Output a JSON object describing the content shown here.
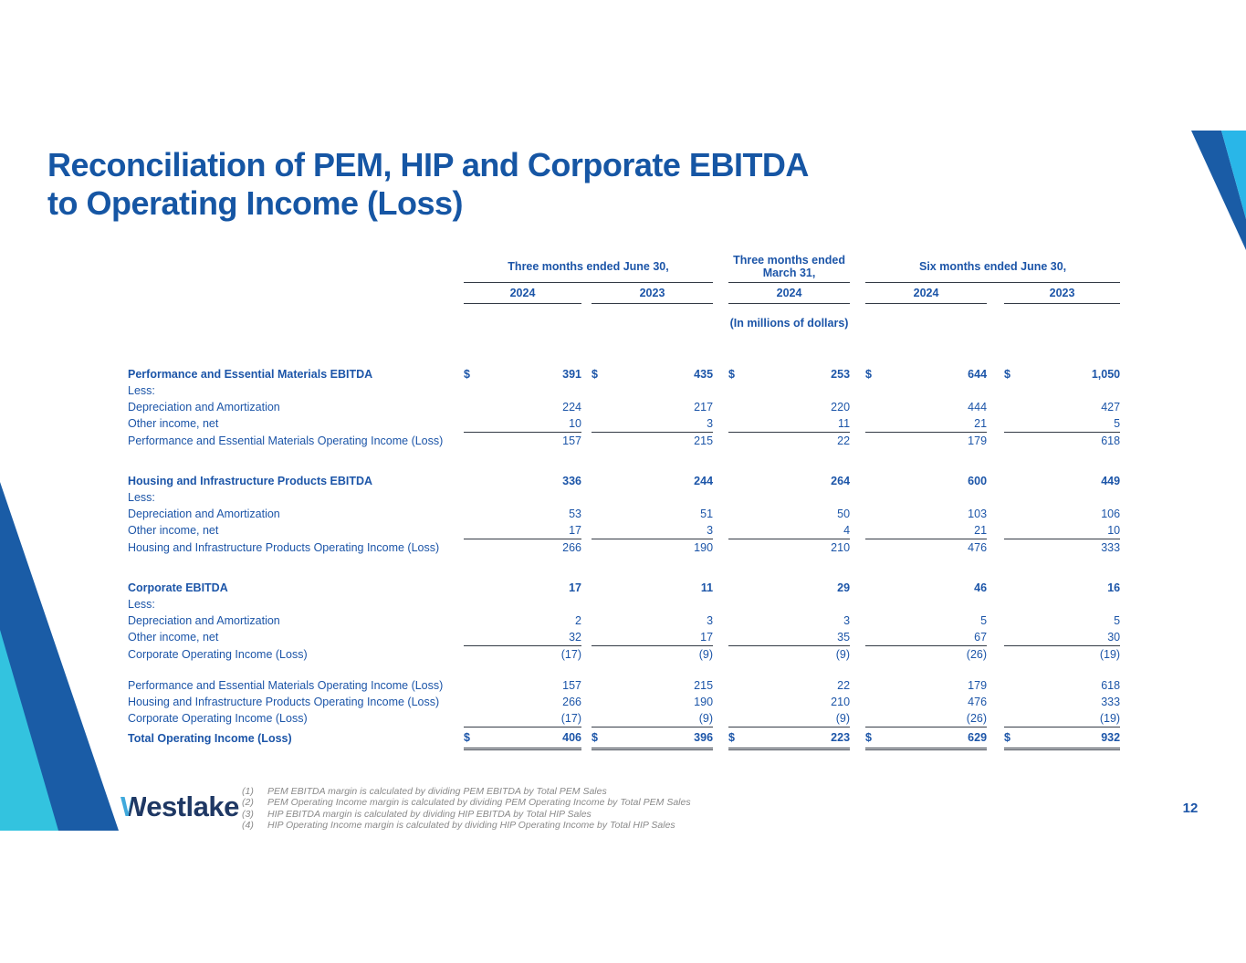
{
  "title": {
    "line1": "Reconciliation of PEM, HIP and Corporate EBITDA",
    "line2": "to Operating Income (Loss)"
  },
  "table": {
    "units_note": "(In millions of dollars)",
    "col_groups": [
      {
        "label_lines": [
          "Three months ended June 30,"
        ],
        "years": [
          "2024",
          "2023"
        ]
      },
      {
        "label_lines": [
          "Three months ended",
          "March 31,"
        ],
        "years": [
          "2024"
        ]
      },
      {
        "label_lines": [
          "Six months ended June 30,"
        ],
        "years": [
          "2024",
          "2023"
        ]
      }
    ],
    "rows": [
      {
        "type": "section",
        "label": "Performance and Essential Materials EBITDA",
        "dollar": true,
        "values": [
          "391",
          "435",
          "253",
          "644",
          "1,050"
        ]
      },
      {
        "type": "plain",
        "label": "Less:",
        "values": [
          "",
          "",
          "",
          "",
          ""
        ]
      },
      {
        "type": "plain",
        "label": "Depreciation and Amortization",
        "values": [
          "224",
          "217",
          "220",
          "444",
          "427"
        ]
      },
      {
        "type": "plain",
        "label": "Other income, net",
        "underline": true,
        "values": [
          "10",
          "3",
          "11",
          "21",
          "5"
        ]
      },
      {
        "type": "plain",
        "label": "Performance and Essential Materials Operating Income (Loss)",
        "values": [
          "157",
          "215",
          "22",
          "179",
          "618"
        ]
      },
      {
        "type": "spacer"
      },
      {
        "type": "section",
        "label": "Housing and Infrastructure Products EBITDA",
        "values": [
          "336",
          "244",
          "264",
          "600",
          "449"
        ]
      },
      {
        "type": "plain",
        "label": "Less:",
        "values": [
          "",
          "",
          "",
          "",
          ""
        ]
      },
      {
        "type": "plain",
        "label": "Depreciation and Amortization",
        "values": [
          "53",
          "51",
          "50",
          "103",
          "106"
        ]
      },
      {
        "type": "plain",
        "label": "Other income, net",
        "underline": true,
        "values": [
          "17",
          "3",
          "4",
          "21",
          "10"
        ]
      },
      {
        "type": "plain",
        "label": "Housing and Infrastructure Products Operating Income (Loss)",
        "values": [
          "266",
          "190",
          "210",
          "476",
          "333"
        ]
      },
      {
        "type": "spacer"
      },
      {
        "type": "section",
        "label": "Corporate EBITDA",
        "values": [
          "17",
          "11",
          "29",
          "46",
          "16"
        ]
      },
      {
        "type": "plain",
        "label": "Less:",
        "values": [
          "",
          "",
          "",
          "",
          ""
        ]
      },
      {
        "type": "plain",
        "label": "Depreciation and Amortization",
        "values": [
          "2",
          "3",
          "3",
          "5",
          "5"
        ]
      },
      {
        "type": "plain",
        "label": "Other income, net",
        "underline": true,
        "values": [
          "32",
          "17",
          "35",
          "67",
          "30"
        ]
      },
      {
        "type": "plain",
        "label": "Corporate Operating Income (Loss)",
        "values": [
          "(17)",
          "(9)",
          "(9)",
          "(26)",
          "(19)"
        ]
      },
      {
        "type": "spacer"
      },
      {
        "type": "plain",
        "label": "Performance and Essential Materials Operating Income (Loss)",
        "values": [
          "157",
          "215",
          "22",
          "179",
          "618"
        ]
      },
      {
        "type": "plain",
        "label": "Housing and Infrastructure Products Operating Income (Loss)",
        "values": [
          "266",
          "190",
          "210",
          "476",
          "333"
        ]
      },
      {
        "type": "plain",
        "label": "Corporate Operating Income (Loss)",
        "underline": true,
        "values": [
          "(17)",
          "(9)",
          "(9)",
          "(26)",
          "(19)"
        ]
      },
      {
        "type": "total",
        "label": "Total Operating Income (Loss)",
        "dollar": true,
        "values": [
          "406",
          "396",
          "223",
          "629",
          "932"
        ]
      }
    ],
    "dollar_sign": "$"
  },
  "footnotes": [
    {
      "num": "(1)",
      "text": "PEM EBITDA margin is calculated by dividing PEM EBITDA by Total PEM Sales"
    },
    {
      "num": "(2)",
      "text": "PEM Operating Income margin is calculated by dividing PEM Operating Income by Total PEM Sales"
    },
    {
      "num": "(3)",
      "text": "HIP EBITDA margin is calculated by dividing HIP EBITDA by Total HIP Sales"
    },
    {
      "num": "(4)",
      "text": "HIP Operating Income margin is calculated by dividing HIP Operating Income by Total HIP Sales"
    }
  ],
  "logo": {
    "brand_initial": "W",
    "brand_rest": "estlake"
  },
  "page_number": "12",
  "colors": {
    "title_blue": "#1656A4",
    "table_text_blue": "#1C55A8",
    "rule_dark": "#333a45",
    "decor_dark_blue": "#1A5CA6",
    "decor_cyan": "#29B6E8",
    "decor_teal": "#33C3DF",
    "logo_navy": "#1F3864",
    "logo_light_blue": "#3FA9DC",
    "footnote_gray": "#8a8a8a"
  }
}
